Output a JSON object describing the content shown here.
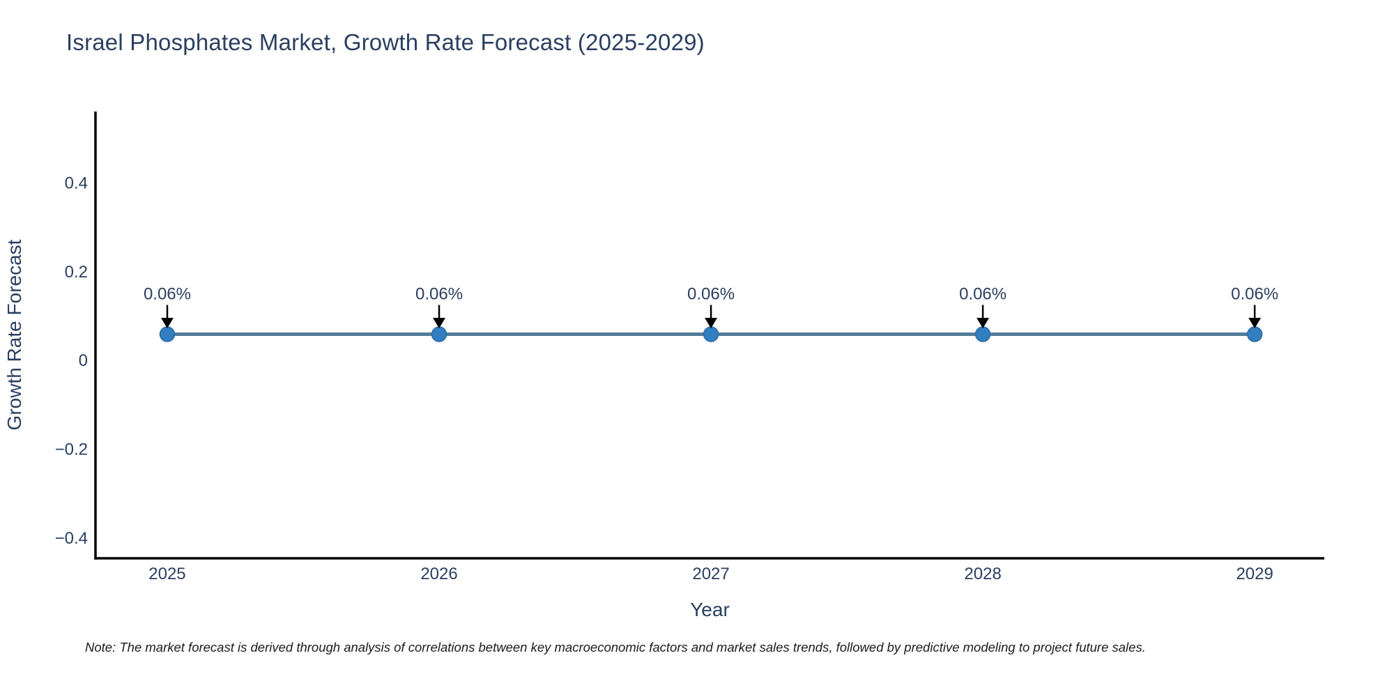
{
  "footnote": "Note: The market forecast is derived through analysis of correlations between key macroeconomic factors and market sales trends, followed by predictive modeling to project future sales.",
  "chart_data": {
    "type": "line",
    "title": "Israel Phosphates Market, Growth Rate Forecast (2025-2029)",
    "xlabel": "Year",
    "ylabel": "Growth Rate Forecast",
    "x": [
      2025,
      2026,
      2027,
      2028,
      2029
    ],
    "series": [
      {
        "name": "Growth Rate Forecast",
        "values": [
          0.06,
          0.06,
          0.06,
          0.06,
          0.06
        ]
      }
    ],
    "point_labels": [
      "0.06%",
      "0.06%",
      "0.06%",
      "0.06%",
      "0.06%"
    ],
    "xticks": [
      2025,
      2026,
      2027,
      2028,
      2029
    ],
    "yticks": [
      0.4,
      0.2,
      0,
      -0.2,
      -0.4
    ],
    "xlim": [
      2024.736,
      2029.256
    ],
    "ylim": [
      -0.445,
      0.562
    ],
    "grid": false,
    "legend_position": "none",
    "colors": {
      "line": "#557d9b",
      "marker": "#337dc1",
      "marker_edge": "#2a6da6",
      "arrow": "#000000",
      "axis_line": "#000000",
      "text": "#2a3f5f",
      "note": "#1c1c1c",
      "background": "#ffffff"
    }
  }
}
